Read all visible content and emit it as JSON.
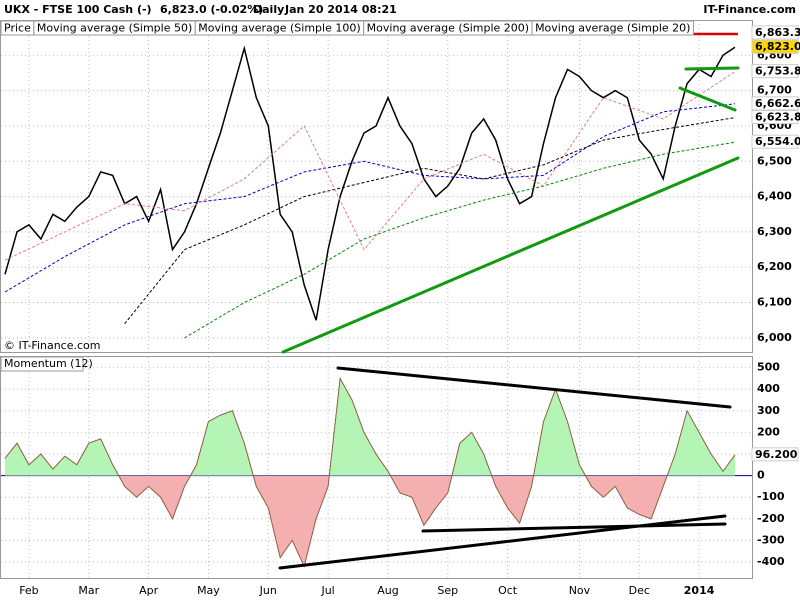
{
  "header": {
    "symbol": "UKX - FTSE 100 Cash (-)",
    "quote": "6,823.0 (-0.02%)",
    "interval": "Daily",
    "timestamp": "Jan 20 2014 08:21",
    "brand": "IT-Finance.com"
  },
  "chart_data": [
    {
      "type": "line",
      "watermark": "© IT-Finance.com",
      "xlim": [
        0,
        61
      ],
      "ylim": [
        5960,
        6900
      ],
      "yticks": [
        {
          "value": 6000,
          "label": "6,000"
        },
        {
          "value": 6100,
          "label": "6,100"
        },
        {
          "value": 6200,
          "label": "6,200"
        },
        {
          "value": 6300,
          "label": "6,300"
        },
        {
          "value": 6400,
          "label": "6,400"
        },
        {
          "value": 6500,
          "label": "6,500"
        },
        {
          "value": 6600,
          "label": "6,600"
        },
        {
          "value": 6700,
          "label": "6,700"
        },
        {
          "value": 6800,
          "label": "6,800"
        }
      ],
      "series": [
        {
          "name": "Price",
          "color": "#000000",
          "values": [
            6180,
            6300,
            6320,
            6280,
            6350,
            6330,
            6370,
            6400,
            6470,
            6460,
            6380,
            6400,
            6330,
            6420,
            6250,
            6300,
            6380,
            6480,
            6580,
            6700,
            6820,
            6680,
            6600,
            6350,
            6300,
            6150,
            6050,
            6250,
            6400,
            6500,
            6580,
            6600,
            6680,
            6600,
            6550,
            6450,
            6400,
            6430,
            6480,
            6580,
            6620,
            6560,
            6450,
            6380,
            6400,
            6550,
            6680,
            6760,
            6740,
            6700,
            6680,
            6700,
            6680,
            6560,
            6520,
            6450,
            6600,
            6720,
            6760,
            6740,
            6800,
            6823
          ]
        },
        {
          "name": "Moving average (Simple 50)",
          "color": "#0000cc",
          "dashed": true,
          "x": [
            0,
            5,
            10,
            15,
            20,
            25,
            30,
            35,
            40,
            45,
            50,
            55,
            61
          ],
          "values": [
            6130,
            6230,
            6320,
            6380,
            6400,
            6470,
            6500,
            6460,
            6450,
            6460,
            6570,
            6640,
            6662.6
          ]
        },
        {
          "name": "Moving average (Simple 100)",
          "color": "#000000",
          "dashed": true,
          "x": [
            0,
            5,
            10,
            15,
            20,
            25,
            30,
            35,
            40,
            45,
            50,
            55,
            61
          ],
          "values": [
            null,
            null,
            6040,
            6250,
            6320,
            6400,
            6440,
            6480,
            6450,
            6490,
            6560,
            6590,
            6623.8
          ]
        },
        {
          "name": "Moving average (Simple 200)",
          "color": "#008800",
          "dashed": true,
          "x": [
            0,
            5,
            10,
            15,
            20,
            25,
            30,
            35,
            40,
            45,
            50,
            55,
            61
          ],
          "values": [
            null,
            null,
            null,
            6000,
            6100,
            6180,
            6280,
            6340,
            6390,
            6430,
            6480,
            6520,
            6554
          ]
        },
        {
          "name": "Moving average (Simple 20)",
          "color": "#e08080",
          "dashed": true,
          "x": [
            0,
            5,
            10,
            15,
            20,
            25,
            30,
            35,
            40,
            45,
            50,
            55,
            61
          ],
          "values": [
            6220,
            6300,
            6380,
            6360,
            6450,
            6600,
            6250,
            6450,
            6520,
            6430,
            6680,
            6620,
            6753.8
          ]
        }
      ],
      "price_labels": [
        {
          "value": 6863.3,
          "label": "6,863.3",
          "color": "#dd0000"
        },
        {
          "value": 6823,
          "label": "6,823.0",
          "color": "#000000",
          "background": "#ffd700"
        },
        {
          "value": 6753.8,
          "label": "6,753.8",
          "color": "#e06060"
        },
        {
          "value": 6662.6,
          "label": "6,662.6",
          "color": "#0000cc"
        },
        {
          "value": 6623.8,
          "label": "6,623.8",
          "color": "#000000"
        },
        {
          "value": 6554,
          "label": "6,554.0",
          "color": "#008800"
        }
      ]
    },
    {
      "type": "area",
      "title": "Momentum (12)",
      "xlim": [
        0,
        61
      ],
      "ylim": [
        -474,
        549
      ],
      "yticks": [
        500,
        400,
        300,
        200,
        100,
        0,
        -100,
        -200,
        -300,
        -400
      ],
      "xticks": [
        {
          "value": 2,
          "label": "Feb"
        },
        {
          "value": 7,
          "label": "Mar"
        },
        {
          "value": 12,
          "label": "Apr"
        },
        {
          "value": 17,
          "label": "May"
        },
        {
          "value": 22,
          "label": "Jun"
        },
        {
          "value": 27,
          "label": "Jul"
        },
        {
          "value": 32,
          "label": "Aug"
        },
        {
          "value": 37,
          "label": "Sep"
        },
        {
          "value": 42,
          "label": "Oct"
        },
        {
          "value": 48,
          "label": "Nov"
        },
        {
          "value": 53,
          "label": "Dec"
        },
        {
          "value": 58,
          "label": "2014"
        }
      ],
      "color_up": "#b4f4b4",
      "color_down": "#f4b0b0",
      "line_color": "#8a6040",
      "values": [
        80,
        150,
        50,
        100,
        30,
        90,
        50,
        150,
        170,
        50,
        -50,
        -100,
        -50,
        -100,
        -200,
        -50,
        50,
        250,
        280,
        300,
        150,
        -50,
        -150,
        -380,
        -300,
        -420,
        -200,
        -50,
        450,
        350,
        200,
        100,
        20,
        -80,
        -100,
        -230,
        -150,
        -80,
        150,
        200,
        100,
        -50,
        -150,
        -220,
        -50,
        250,
        400,
        250,
        50,
        -50,
        -100,
        -50,
        -150,
        -180,
        -200,
        -50,
        100,
        300,
        200,
        100,
        20,
        96.2
      ],
      "value_label": {
        "value": 96.2,
        "label": "96.200"
      }
    }
  ]
}
